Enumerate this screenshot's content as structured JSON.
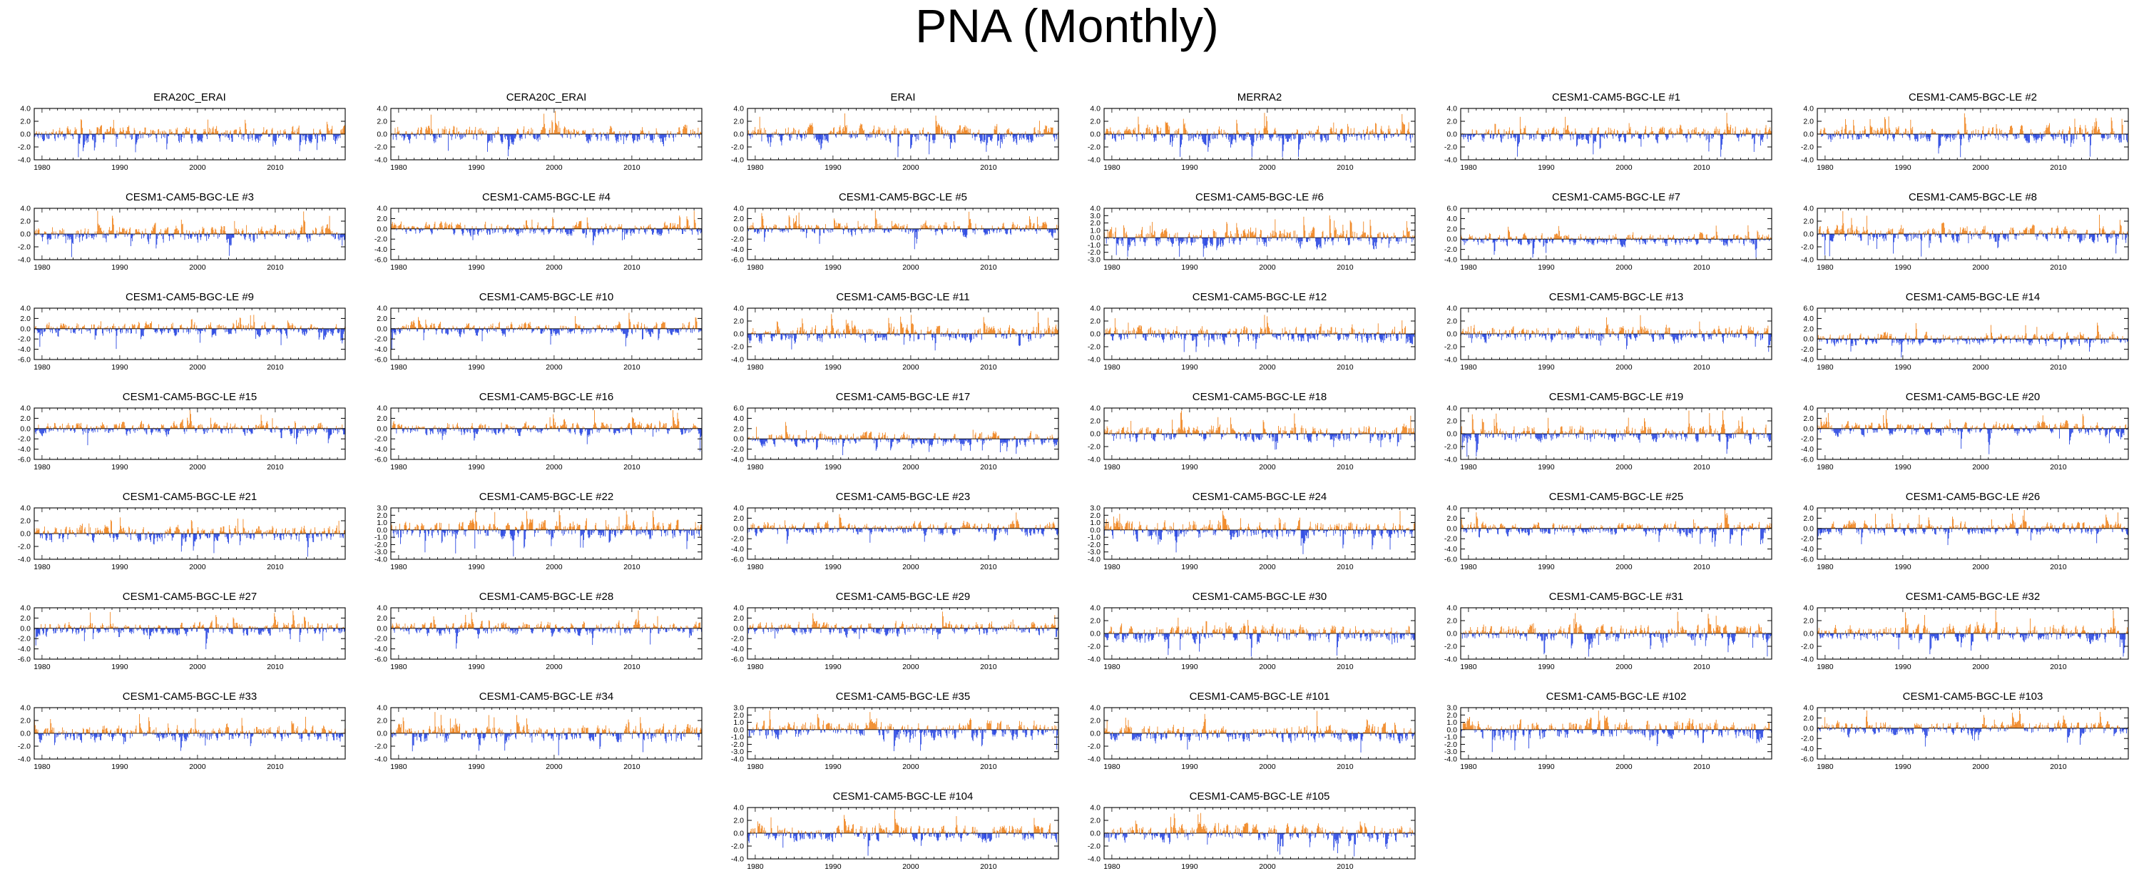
{
  "title": "PNA (Monthly)",
  "colors": {
    "positive": "#f07f14",
    "negative": "#1d3de0",
    "axis": "#000000"
  },
  "chart_data": {
    "type": "bar",
    "xlabel": "",
    "ylabel": "",
    "x_tick_labels": [
      "1980",
      "1990",
      "2000",
      "2010"
    ],
    "x_range": [
      1979,
      2019
    ],
    "panels": [
      {
        "title": "ERA20C_ERAI",
        "ylim": [
          -4,
          4
        ],
        "yticks": [
          "4.0",
          "2.0",
          "0.0",
          "-2.0",
          "-4.0"
        ]
      },
      {
        "title": "CERA20C_ERAI",
        "ylim": [
          -4,
          4
        ],
        "yticks": [
          "4.0",
          "2.0",
          "0.0",
          "-2.0",
          "-4.0"
        ]
      },
      {
        "title": "ERAI",
        "ylim": [
          -4,
          4
        ],
        "yticks": [
          "4.0",
          "2.0",
          "0.0",
          "-2.0",
          "-4.0"
        ]
      },
      {
        "title": "MERRA2",
        "ylim": [
          -4,
          4
        ],
        "yticks": [
          "4.0",
          "2.0",
          "0.0",
          "-2.0",
          "-4.0"
        ]
      },
      {
        "title": "CESM1-CAM5-BGC-LE #1",
        "ylim": [
          -4,
          4
        ],
        "yticks": [
          "4.0",
          "2.0",
          "0.0",
          "-2.0",
          "-4.0"
        ]
      },
      {
        "title": "CESM1-CAM5-BGC-LE #2",
        "ylim": [
          -4,
          4
        ],
        "yticks": [
          "4.0",
          "2.0",
          "0.0",
          "-2.0",
          "-4.0"
        ]
      },
      {
        "title": "CESM1-CAM5-BGC-LE #3",
        "ylim": [
          -4,
          4
        ],
        "yticks": [
          "4.0",
          "2.0",
          "0.0",
          "-2.0",
          "-4.0"
        ]
      },
      {
        "title": "CESM1-CAM5-BGC-LE #4",
        "ylim": [
          -6,
          4
        ],
        "yticks": [
          "4.0",
          "2.0",
          "0.0",
          "-2.0",
          "-4.0",
          "-6.0"
        ]
      },
      {
        "title": "CESM1-CAM5-BGC-LE #5",
        "ylim": [
          -6,
          4
        ],
        "yticks": [
          "4.0",
          "2.0",
          "0.0",
          "-2.0",
          "-4.0",
          "-6.0"
        ]
      },
      {
        "title": "CESM1-CAM5-BGC-LE #6",
        "ylim": [
          -3,
          4
        ],
        "yticks": [
          "4.0",
          "3.0",
          "2.0",
          "1.0",
          "0.0",
          "-1.0",
          "-2.0",
          "-3.0"
        ]
      },
      {
        "title": "CESM1-CAM5-BGC-LE #7",
        "ylim": [
          -4,
          6
        ],
        "yticks": [
          "6.0",
          "4.0",
          "2.0",
          "0.0",
          "-2.0",
          "-4.0"
        ]
      },
      {
        "title": "CESM1-CAM5-BGC-LE #8",
        "ylim": [
          -4,
          4
        ],
        "yticks": [
          "4.0",
          "2.0",
          "0.0",
          "-2.0",
          "-4.0"
        ]
      },
      {
        "title": "CESM1-CAM5-BGC-LE #9",
        "ylim": [
          -6,
          4
        ],
        "yticks": [
          "4.0",
          "2.0",
          "0.0",
          "-2.0",
          "-4.0",
          "-6.0"
        ]
      },
      {
        "title": "CESM1-CAM5-BGC-LE #10",
        "ylim": [
          -6,
          4
        ],
        "yticks": [
          "4.0",
          "2.0",
          "0.0",
          "-2.0",
          "-4.0",
          "-6.0"
        ]
      },
      {
        "title": "CESM1-CAM5-BGC-LE #11",
        "ylim": [
          -4,
          4
        ],
        "yticks": [
          "4.0",
          "2.0",
          "0.0",
          "-2.0",
          "-4.0"
        ]
      },
      {
        "title": "CESM1-CAM5-BGC-LE #12",
        "ylim": [
          -4,
          4
        ],
        "yticks": [
          "4.0",
          "2.0",
          "0.0",
          "-2.0",
          "-4.0"
        ]
      },
      {
        "title": "CESM1-CAM5-BGC-LE #13",
        "ylim": [
          -4,
          4
        ],
        "yticks": [
          "4.0",
          "2.0",
          "0.0",
          "-2.0",
          "-4.0"
        ]
      },
      {
        "title": "CESM1-CAM5-BGC-LE #14",
        "ylim": [
          -4,
          6
        ],
        "yticks": [
          "6.0",
          "4.0",
          "2.0",
          "0.0",
          "-2.0",
          "-4.0"
        ]
      },
      {
        "title": "CESM1-CAM5-BGC-LE #15",
        "ylim": [
          -6,
          4
        ],
        "yticks": [
          "4.0",
          "2.0",
          "0.0",
          "-2.0",
          "-4.0",
          "-6.0"
        ]
      },
      {
        "title": "CESM1-CAM5-BGC-LE #16",
        "ylim": [
          -6,
          4
        ],
        "yticks": [
          "4.0",
          "2.0",
          "0.0",
          "-2.0",
          "-4.0",
          "-6.0"
        ]
      },
      {
        "title": "CESM1-CAM5-BGC-LE #17",
        "ylim": [
          -4,
          6
        ],
        "yticks": [
          "6.0",
          "4.0",
          "2.0",
          "0.0",
          "-2.0",
          "-4.0"
        ]
      },
      {
        "title": "CESM1-CAM5-BGC-LE #18",
        "ylim": [
          -4,
          4
        ],
        "yticks": [
          "4.0",
          "2.0",
          "0.0",
          "-2.0",
          "-4.0"
        ]
      },
      {
        "title": "CESM1-CAM5-BGC-LE #19",
        "ylim": [
          -4,
          4
        ],
        "yticks": [
          "4.0",
          "2.0",
          "0.0",
          "-2.0",
          "-4.0"
        ]
      },
      {
        "title": "CESM1-CAM5-BGC-LE #20",
        "ylim": [
          -6,
          4
        ],
        "yticks": [
          "4.0",
          "2.0",
          "0.0",
          "-2.0",
          "-4.0",
          "-6.0"
        ]
      },
      {
        "title": "CESM1-CAM5-BGC-LE #21",
        "ylim": [
          -4,
          4
        ],
        "yticks": [
          "4.0",
          "2.0",
          "0.0",
          "-2.0",
          "-4.0"
        ]
      },
      {
        "title": "CESM1-CAM5-BGC-LE #22",
        "ylim": [
          -4,
          3
        ],
        "yticks": [
          "3.0",
          "2.0",
          "1.0",
          "0.0",
          "-1.0",
          "-2.0",
          "-3.0",
          "-4.0"
        ]
      },
      {
        "title": "CESM1-CAM5-BGC-LE #23",
        "ylim": [
          -6,
          4
        ],
        "yticks": [
          "4.0",
          "2.0",
          "0.0",
          "-2.0",
          "-4.0",
          "-6.0"
        ]
      },
      {
        "title": "CESM1-CAM5-BGC-LE #24",
        "ylim": [
          -4,
          3
        ],
        "yticks": [
          "3.0",
          "2.0",
          "1.0",
          "0.0",
          "-1.0",
          "-2.0",
          "-3.0",
          "-4.0"
        ]
      },
      {
        "title": "CESM1-CAM5-BGC-LE #25",
        "ylim": [
          -6,
          4
        ],
        "yticks": [
          "4.0",
          "2.0",
          "0.0",
          "-2.0",
          "-4.0",
          "-6.0"
        ]
      },
      {
        "title": "CESM1-CAM5-BGC-LE #26",
        "ylim": [
          -6,
          4
        ],
        "yticks": [
          "4.0",
          "2.0",
          "0.0",
          "-2.0",
          "-4.0",
          "-6.0"
        ]
      },
      {
        "title": "CESM1-CAM5-BGC-LE #27",
        "ylim": [
          -6,
          4
        ],
        "yticks": [
          "4.0",
          "2.0",
          "0.0",
          "-2.0",
          "-4.0",
          "-6.0"
        ]
      },
      {
        "title": "CESM1-CAM5-BGC-LE #28",
        "ylim": [
          -6,
          4
        ],
        "yticks": [
          "4.0",
          "2.0",
          "0.0",
          "-2.0",
          "-4.0",
          "-6.0"
        ]
      },
      {
        "title": "CESM1-CAM5-BGC-LE #29",
        "ylim": [
          -6,
          4
        ],
        "yticks": [
          "4.0",
          "2.0",
          "0.0",
          "-2.0",
          "-4.0",
          "-6.0"
        ]
      },
      {
        "title": "CESM1-CAM5-BGC-LE #30",
        "ylim": [
          -4,
          4
        ],
        "yticks": [
          "4.0",
          "2.0",
          "0.0",
          "-2.0",
          "-4.0"
        ]
      },
      {
        "title": "CESM1-CAM5-BGC-LE #31",
        "ylim": [
          -4,
          4
        ],
        "yticks": [
          "4.0",
          "2.0",
          "0.0",
          "-2.0",
          "-4.0"
        ]
      },
      {
        "title": "CESM1-CAM5-BGC-LE #32",
        "ylim": [
          -4,
          4
        ],
        "yticks": [
          "4.0",
          "2.0",
          "0.0",
          "-2.0",
          "-4.0"
        ]
      },
      {
        "title": "CESM1-CAM5-BGC-LE #33",
        "ylim": [
          -4,
          4
        ],
        "yticks": [
          "4.0",
          "2.0",
          "0.0",
          "-2.0",
          "-4.0"
        ]
      },
      {
        "title": "CESM1-CAM5-BGC-LE #34",
        "ylim": [
          -4,
          4
        ],
        "yticks": [
          "4.0",
          "2.0",
          "0.0",
          "-2.0",
          "-4.0"
        ]
      },
      {
        "title": "CESM1-CAM5-BGC-LE #35",
        "ylim": [
          -4,
          3
        ],
        "yticks": [
          "3.0",
          "2.0",
          "1.0",
          "0.0",
          "-1.0",
          "-2.0",
          "-3.0",
          "-4.0"
        ]
      },
      {
        "title": "CESM1-CAM5-BGC-LE #101",
        "ylim": [
          -4,
          4
        ],
        "yticks": [
          "4.0",
          "2.0",
          "0.0",
          "-2.0",
          "-4.0"
        ]
      },
      {
        "title": "CESM1-CAM5-BGC-LE #102",
        "ylim": [
          -4,
          3
        ],
        "yticks": [
          "3.0",
          "2.0",
          "1.0",
          "0.0",
          "-1.0",
          "-2.0",
          "-3.0",
          "-4.0"
        ]
      },
      {
        "title": "CESM1-CAM5-BGC-LE #103",
        "ylim": [
          -6,
          4
        ],
        "yticks": [
          "4.0",
          "2.0",
          "0.0",
          "-2.0",
          "-4.0",
          "-6.0"
        ]
      },
      {
        "title": "CESM1-CAM5-BGC-LE #104",
        "ylim": [
          -4,
          4
        ],
        "yticks": [
          "4.0",
          "2.0",
          "0.0",
          "-2.0",
          "-4.0"
        ]
      },
      {
        "title": "CESM1-CAM5-BGC-LE #105",
        "ylim": [
          -4,
          4
        ],
        "yticks": [
          "4.0",
          "2.0",
          "0.0",
          "-2.0",
          "-4.0"
        ]
      }
    ]
  }
}
